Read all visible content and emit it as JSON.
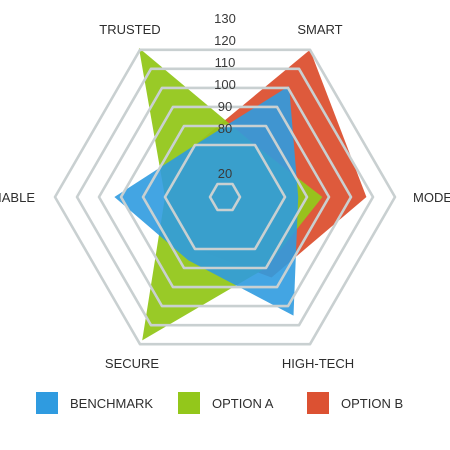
{
  "chart_data": {
    "type": "radar",
    "axes": [
      "SMART",
      "MODERN",
      "HIGH-TECH",
      "SECURE",
      "RELIABLE",
      "TRUSTED"
    ],
    "rings": [
      20,
      80,
      90,
      100,
      110,
      120,
      130
    ],
    "series": [
      {
        "name": "BENCHMARK",
        "color": "#2f9be0",
        "values": [
          111,
          86,
          115,
          86,
          103,
          80
        ]
      },
      {
        "name": "OPTION A",
        "color": "#93c71b",
        "values": [
          80,
          97,
          90,
          128,
          80,
          131
        ]
      },
      {
        "name": "OPTION B",
        "color": "#dc5132",
        "values": [
          130,
          117,
          95,
          80,
          80,
          80
        ]
      }
    ],
    "grid": true,
    "legend_position": "bottom"
  }
}
